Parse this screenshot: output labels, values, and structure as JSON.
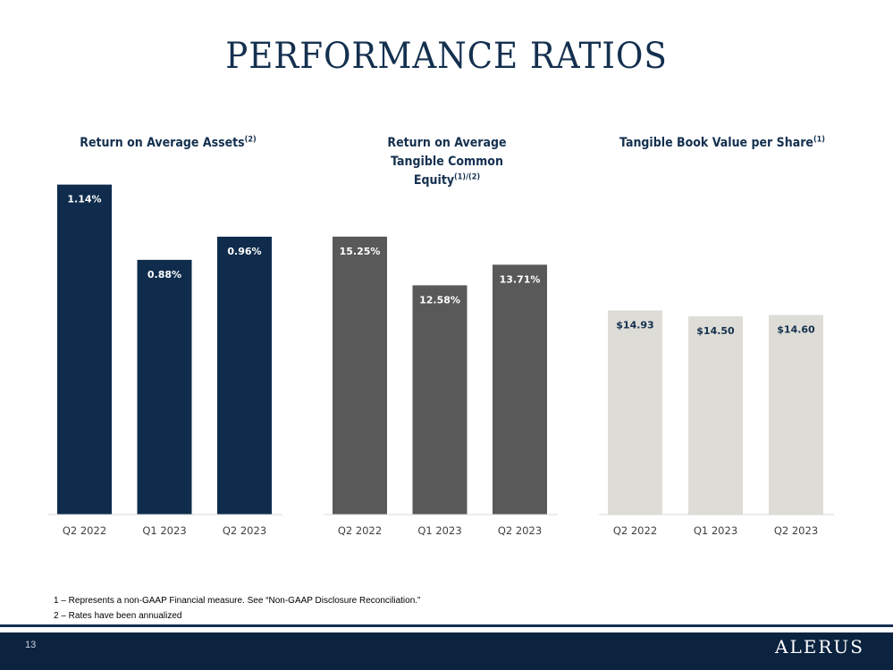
{
  "title": "PERFORMANCE RATIOS",
  "chart_data": [
    {
      "type": "bar",
      "title": "Return on Average Assets",
      "title_sup": "(2)",
      "categories": [
        "Q2 2022",
        "Q1 2023",
        "Q2 2023"
      ],
      "values": [
        1.14,
        0.88,
        0.96
      ],
      "labels": [
        "1.14%",
        "0.88%",
        "0.96%"
      ],
      "unit": "%",
      "color": "#0f2c4c",
      "label_color": "#ffffff",
      "grid": false
    },
    {
      "type": "bar",
      "title": "Return on Average Tangible Common Equity",
      "title_sup": "(1)/(2)",
      "categories": [
        "Q2 2022",
        "Q1 2023",
        "Q2 2023"
      ],
      "values": [
        15.25,
        12.58,
        13.71
      ],
      "labels": [
        "15.25%",
        "12.58%",
        "13.71%"
      ],
      "unit": "%",
      "color": "#595959",
      "label_color": "#ffffff",
      "grid": false
    },
    {
      "type": "bar",
      "title": "Tangible Book Value per Share",
      "title_sup": "(1)",
      "categories": [
        "Q2 2022",
        "Q1 2023",
        "Q2 2023"
      ],
      "values": [
        14.93,
        14.5,
        14.6
      ],
      "labels": [
        "$14.93",
        "$14.50",
        "$14.60"
      ],
      "unit": "$",
      "color": "#dddcd6",
      "label_color": "#14304f",
      "grid": false
    }
  ],
  "footnotes": [
    "1 – Represents a non-GAAP Financial measure. See “Non-GAAP Disclosure Reconciliation.”",
    "2 – Rates have been annualized"
  ],
  "footer": {
    "page_number": "13",
    "logo_text": "ALERUS"
  }
}
